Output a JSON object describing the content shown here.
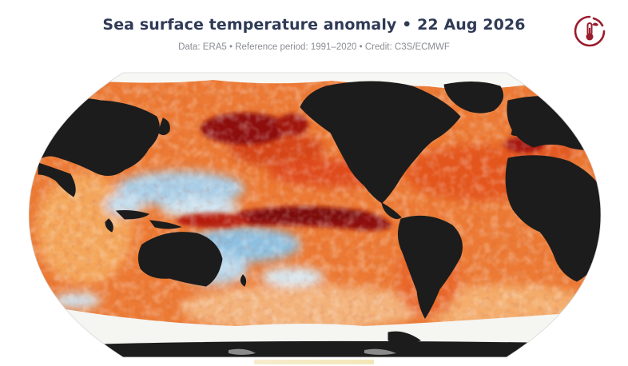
{
  "header": {
    "title": "Sea surface temperature anomaly • 22 Aug 2026",
    "subtitle": "Data: ERA5 • Reference period: 1991–2020 • Credit: C3S/ECMWF"
  },
  "logo": {
    "icon": "thermometer-logo-icon",
    "color": "#9b1c2c"
  },
  "map": {
    "projection": "robinson",
    "variable": "sea surface temperature anomaly",
    "colors": {
      "land": "#1c1c1c",
      "sea_ice": "#f7f7f4",
      "strong_warm": "#8e0a0a",
      "warm": "#e0451a",
      "mild_warm": "#f29a45",
      "neutral": "#fbf3ea",
      "cool": "#9cc8e6",
      "cold": "#2f6fb3"
    },
    "features": [
      "land-masses",
      "sea-ice",
      "pacific-warm-tongue",
      "north-pacific-warm-anomaly",
      "southern-ocean-ice-shelf"
    ]
  }
}
